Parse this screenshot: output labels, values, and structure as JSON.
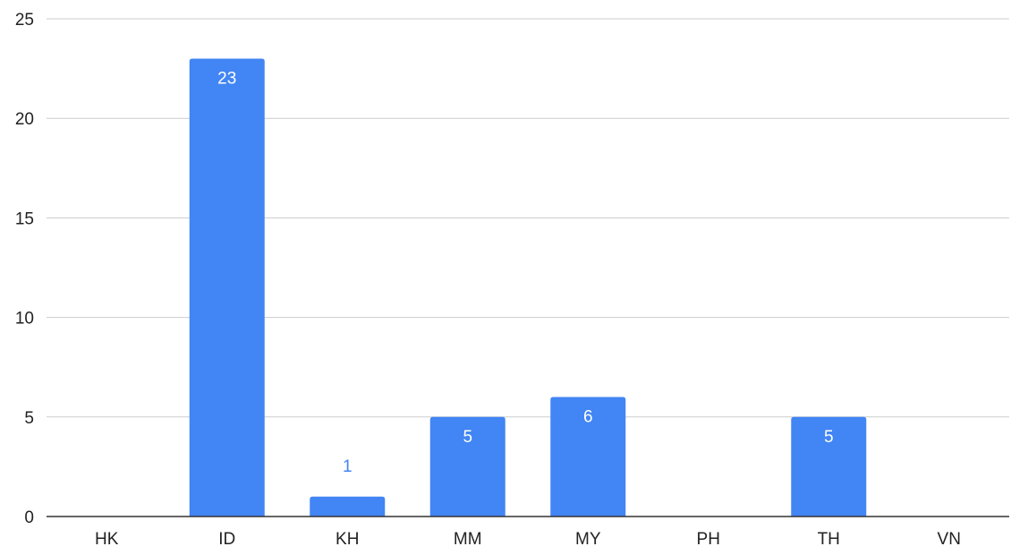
{
  "chart_data": {
    "type": "bar",
    "categories": [
      "HK",
      "ID",
      "KH",
      "MM",
      "MY",
      "PH",
      "TH",
      "VN"
    ],
    "values": [
      0,
      23,
      1,
      5,
      6,
      0,
      5,
      0
    ],
    "data_labels": [
      "",
      "23",
      "1",
      "5",
      "6",
      "",
      "5",
      ""
    ],
    "y_ticks": [
      "0",
      "5",
      "10",
      "15",
      "20",
      "25"
    ],
    "ylim": [
      0,
      25
    ],
    "grid": true,
    "legend": "none",
    "colors": {
      "bar": "#4285f4",
      "grid": "#cccccc",
      "axis": "#333333",
      "label_inside": "#ffffff",
      "label_outside": "#4285f4"
    }
  }
}
